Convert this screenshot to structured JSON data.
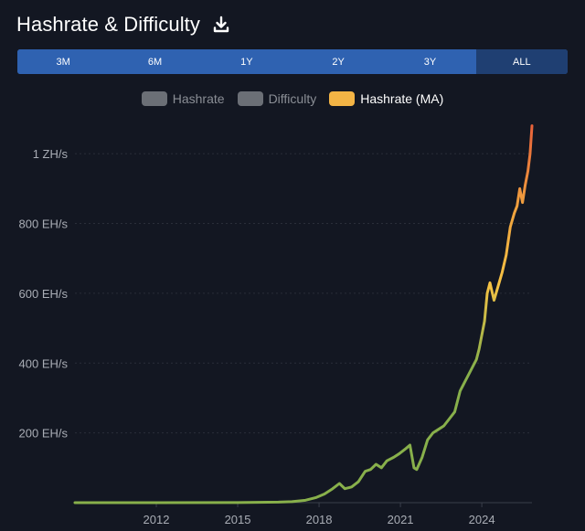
{
  "header": {
    "title": "Hashrate & Difficulty"
  },
  "range_buttons": [
    {
      "label": "3M",
      "active": false
    },
    {
      "label": "6M",
      "active": false
    },
    {
      "label": "1Y",
      "active": false
    },
    {
      "label": "2Y",
      "active": false
    },
    {
      "label": "3Y",
      "active": false
    },
    {
      "label": "ALL",
      "active": true
    }
  ],
  "legend": [
    {
      "label": "Hashrate",
      "color": "#6b6f76",
      "label_color": "#8a8e95"
    },
    {
      "label": "Difficulty",
      "color": "#6b6f76",
      "label_color": "#8a8e95"
    },
    {
      "label": "Hashrate (MA)",
      "color": "#f3b445",
      "label_color": "#ffffff"
    }
  ],
  "icons": {
    "download": "download-icon"
  },
  "colors": {
    "background": "#131722",
    "grid": "#2a2e39",
    "axis_text": "#a9adb5",
    "button_bg": "#2f62b1",
    "button_active_bg": "#1f3f72",
    "line_low": "#88b04b",
    "line_mid": "#f6c244",
    "line_high": "#e8623a"
  },
  "chart_data": {
    "type": "line",
    "title": "Hashrate & Difficulty",
    "xlabel": "",
    "ylabel": "",
    "x_ticks": [
      "2012",
      "2015",
      "2018",
      "2021",
      "2024"
    ],
    "x_tick_values": [
      2012,
      2015,
      2018,
      2021,
      2024
    ],
    "xlim": [
      2009.0,
      2025.85
    ],
    "y_ticks": [
      "200 EH/s",
      "400 EH/s",
      "600 EH/s",
      "800 EH/s",
      "1 ZH/s"
    ],
    "y_tick_values": [
      200,
      400,
      600,
      800,
      1000
    ],
    "ylim": [
      0,
      1100
    ],
    "y_unit": "EH/s",
    "grid": "horizontal dotted",
    "legend_position": "top-center",
    "series": [
      {
        "name": "Hashrate (MA)",
        "visible": true,
        "points": [
          [
            2009.0,
            0
          ],
          [
            2012.0,
            0
          ],
          [
            2015.0,
            0.3
          ],
          [
            2016.5,
            1.5
          ],
          [
            2017.0,
            3
          ],
          [
            2017.5,
            7
          ],
          [
            2017.9,
            15
          ],
          [
            2018.2,
            25
          ],
          [
            2018.5,
            40
          ],
          [
            2018.75,
            55
          ],
          [
            2018.95,
            40
          ],
          [
            2019.2,
            45
          ],
          [
            2019.45,
            60
          ],
          [
            2019.7,
            90
          ],
          [
            2019.9,
            95
          ],
          [
            2020.1,
            110
          ],
          [
            2020.3,
            100
          ],
          [
            2020.5,
            120
          ],
          [
            2020.75,
            130
          ],
          [
            2020.95,
            140
          ],
          [
            2021.2,
            155
          ],
          [
            2021.35,
            165
          ],
          [
            2021.5,
            100
          ],
          [
            2021.6,
            95
          ],
          [
            2021.8,
            130
          ],
          [
            2022.0,
            180
          ],
          [
            2022.2,
            200
          ],
          [
            2022.4,
            210
          ],
          [
            2022.6,
            220
          ],
          [
            2022.8,
            240
          ],
          [
            2023.0,
            260
          ],
          [
            2023.2,
            320
          ],
          [
            2023.4,
            350
          ],
          [
            2023.6,
            380
          ],
          [
            2023.8,
            410
          ],
          [
            2023.9,
            440
          ],
          [
            2024.0,
            480
          ],
          [
            2024.1,
            520
          ],
          [
            2024.2,
            600
          ],
          [
            2024.3,
            630
          ],
          [
            2024.45,
            580
          ],
          [
            2024.6,
            620
          ],
          [
            2024.75,
            660
          ],
          [
            2024.9,
            710
          ],
          [
            2025.05,
            790
          ],
          [
            2025.2,
            830
          ],
          [
            2025.3,
            850
          ],
          [
            2025.4,
            900
          ],
          [
            2025.5,
            860
          ],
          [
            2025.6,
            910
          ],
          [
            2025.7,
            950
          ],
          [
            2025.78,
            1000
          ],
          [
            2025.85,
            1080
          ]
        ]
      },
      {
        "name": "Hashrate",
        "visible": false,
        "points": []
      },
      {
        "name": "Difficulty",
        "visible": false,
        "points": []
      }
    ]
  }
}
